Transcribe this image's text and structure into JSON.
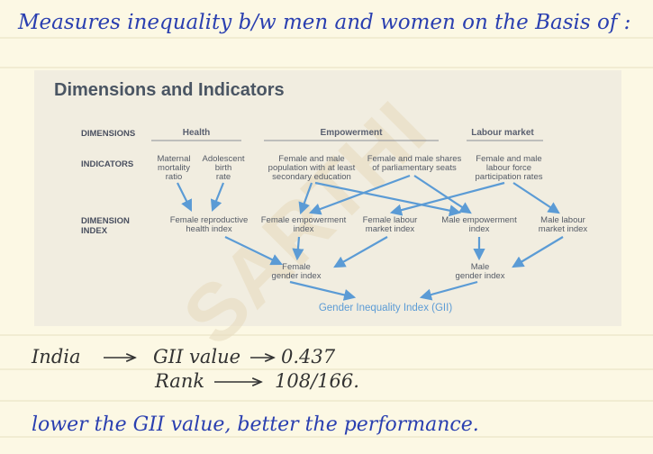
{
  "notes": {
    "heading": "Measures inequality b/w men and women on the Basis of :",
    "country": "India",
    "gii_label": "GII value",
    "gii_value": "0.437",
    "rank_label": "Rank",
    "rank_value": "108/166.",
    "conclusion": "lower the GII value, better the performance."
  },
  "watermark": "SARTHI",
  "diagram": {
    "title": "Dimensions and Indicators",
    "row_labels": {
      "dimensions": "DIMENSIONS",
      "indicators": "INDICATORS",
      "dimension_index": [
        "DIMENSION",
        "INDEX"
      ]
    },
    "dimensions": [
      "Health",
      "Empowerment",
      "Labour market"
    ],
    "indicators": [
      [
        "Maternal",
        "mortality",
        "ratio"
      ],
      [
        "Adolescent",
        "birth",
        "rate"
      ],
      [
        "Female and male",
        "population with at least",
        "secondary education"
      ],
      [
        "Female and male shares",
        "of parliamentary seats"
      ],
      [
        "Female and male",
        "labour force",
        "participation rates"
      ]
    ],
    "dimension_index": [
      [
        "Female reproductive",
        "health index"
      ],
      [
        "Female empowerment",
        "index"
      ],
      [
        "Female labour",
        "market index"
      ],
      [
        "Male empowerment",
        "index"
      ],
      [
        "Male labour",
        "market index"
      ]
    ],
    "gender_index": [
      [
        "Female",
        "gender index"
      ],
      [
        "Male",
        "gender index"
      ]
    ],
    "result": "Gender Inequality Index (GII)"
  }
}
